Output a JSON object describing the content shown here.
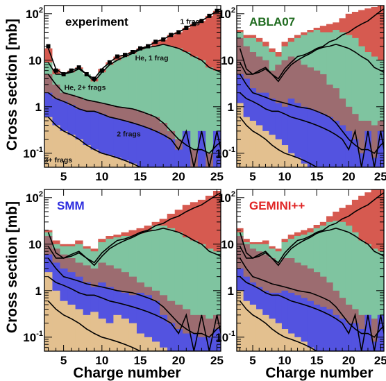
{
  "chart_data": {
    "type": "area",
    "stacked": true,
    "y_scale": "log",
    "shared_xlabel": "Charge number",
    "shared_ylabel": "Cross section [mb]",
    "xlim": [
      2.5,
      25.5
    ],
    "ylim": [
      0.05,
      150
    ],
    "x_ticks": [
      5,
      10,
      15,
      20,
      25
    ],
    "y_ticks": [
      {
        "value": 0.1,
        "base": "10",
        "exp": "-1"
      },
      {
        "value": 1,
        "base": "1",
        "exp": ""
      },
      {
        "value": 10,
        "base": "10",
        "exp": ""
      },
      {
        "value": 100,
        "base": "10",
        "exp": "2"
      }
    ],
    "colors": {
      "3+ frags": "#e3c08f",
      "2 frags": "#5353e0",
      "He, 2+ frags": "#9c6c70",
      "He, 1 frag": "#7fc4a0",
      "1 frag": "#d65a50"
    },
    "x": [
      3,
      4,
      5,
      6,
      7,
      8,
      9,
      10,
      11,
      12,
      13,
      14,
      15,
      16,
      17,
      18,
      19,
      20,
      21,
      22,
      23,
      24,
      25,
      26
    ],
    "experiment_totals": {
      "1 frag_top": [
        18,
        6.5,
        5,
        6,
        7,
        5,
        4,
        6.5,
        9,
        12,
        13,
        15,
        18,
        20,
        25,
        28,
        35,
        40,
        50,
        60,
        70,
        90,
        115,
        140
      ],
      "He1_top": [
        9,
        5,
        5,
        5.5,
        6.5,
        5,
        3.5,
        5.5,
        8,
        10,
        12,
        14,
        17,
        19,
        20,
        22,
        20,
        18,
        15,
        12,
        10,
        7,
        6,
        5
      ],
      "He2_top": [
        5,
        3,
        2,
        1.8,
        1.6,
        1.4,
        1.3,
        1.2,
        1.1,
        1.0,
        0.95,
        0.9,
        0.8,
        0.7,
        0.6,
        0.45,
        0.3,
        0.2,
        0.15,
        0.12,
        0.12,
        0.1,
        0.15,
        0.2
      ],
      "2frag_top": [
        2,
        1.5,
        1.3,
        1.1,
        0.9,
        0.8,
        0.8,
        0.7,
        0.6,
        0.55,
        0.5,
        0.45,
        0.4,
        0.35,
        0.3,
        0.25,
        0.2,
        0.12,
        0.3,
        0.05,
        0.3,
        0.05,
        0.3,
        0.05
      ],
      "3plus_top": [
        0.6,
        0.4,
        0.3,
        0.25,
        0.2,
        0.15,
        0.12,
        0.1,
        0.09,
        0.08,
        0.07,
        0.06,
        0.05,
        0.05,
        0.05,
        0.05,
        0.05,
        0.05,
        0.05,
        0.05,
        0.05,
        0.05,
        0.05,
        0.05
      ]
    },
    "panels": [
      {
        "title": "experiment",
        "title_color": "#000000",
        "region_labels": [
          {
            "text": "1 frag",
            "x": 21.5,
            "y": 60
          },
          {
            "text": "He, 1 frag",
            "x": 16.5,
            "y": 10
          },
          {
            "text": "He, 2+ frags",
            "x": 7.8,
            "y": 2.3
          },
          {
            "text": "2 frags",
            "x": 13.5,
            "y": 0.23
          },
          {
            "text": "3+ frags",
            "x": 4.3,
            "y": 0.064
          }
        ],
        "stack_tops": {
          "3plus": [
            0.6,
            0.4,
            0.3,
            0.25,
            0.2,
            0.15,
            0.12,
            0.1,
            0.09,
            0.08,
            0.07,
            0.06,
            0.05,
            0.05,
            0.05,
            0.05,
            0.05,
            0.05,
            0.05,
            0.05,
            0.05,
            0.05,
            0.05,
            0.05
          ],
          "2frag": [
            2,
            1.5,
            1.3,
            1.1,
            0.9,
            0.8,
            0.8,
            0.7,
            0.6,
            0.55,
            0.5,
            0.45,
            0.4,
            0.35,
            0.3,
            0.25,
            0.2,
            0.12,
            0.3,
            0.05,
            0.3,
            0.05,
            0.3,
            0.05
          ],
          "He2": [
            5,
            3,
            2,
            1.8,
            1.6,
            1.4,
            1.3,
            1.2,
            1.1,
            1.0,
            0.95,
            0.9,
            0.8,
            0.7,
            0.6,
            0.45,
            0.3,
            0.2,
            0.15,
            0.12,
            0.12,
            0.1,
            0.15,
            0.2
          ],
          "He1": [
            9,
            5,
            5,
            5.5,
            6.5,
            5,
            3.5,
            5.5,
            8,
            10,
            12,
            14,
            17,
            19,
            20,
            22,
            20,
            18,
            15,
            12,
            10,
            7,
            6,
            5
          ],
          "onefrag": [
            18,
            6.5,
            5,
            6,
            7,
            5,
            4,
            6.5,
            9,
            12,
            13,
            15,
            18,
            20,
            25,
            28,
            35,
            40,
            50,
            60,
            70,
            90,
            115,
            140
          ]
        },
        "markers": [
          20,
          6,
          5,
          6,
          7,
          5,
          4,
          6,
          9,
          12,
          13,
          15,
          18,
          20,
          25,
          28,
          35,
          40,
          50,
          60,
          70,
          90,
          115
        ]
      },
      {
        "title": "ABLA07",
        "title_color": "#1f6b1f",
        "region_labels": [],
        "stack_tops": {
          "3plus": [
            1.2,
            0.6,
            0.5,
            0.4,
            0.3,
            0.25,
            0.2,
            0.15,
            0.1,
            0.08,
            0.06,
            0.05,
            0.05,
            0.05,
            0.05,
            0.05,
            0.05,
            0.05,
            0.05,
            0.05,
            0.05,
            0.05,
            0.05,
            0.05
          ],
          "2frag": [
            5,
            4,
            2.5,
            2,
            2,
            1.5,
            1.2,
            1,
            1.5,
            1.2,
            1,
            0.9,
            0.8,
            0.7,
            0.6,
            0.5,
            0.4,
            0.3,
            0.2,
            0.1,
            0.3,
            0.08,
            0.3,
            0.1
          ],
          "He2": [
            30,
            20,
            15,
            12,
            10,
            6,
            8,
            10,
            12,
            10,
            8,
            7,
            6,
            5,
            3,
            2.5,
            1.5,
            1,
            0.7,
            0.5,
            0.5,
            0.4,
            0.5,
            0.5
          ],
          "He1": [
            40,
            30,
            30,
            25,
            20,
            15,
            12,
            20,
            25,
            30,
            35,
            40,
            45,
            40,
            40,
            45,
            40,
            35,
            30,
            20,
            15,
            12,
            10,
            8
          ],
          "onefrag": [
            45,
            35,
            35,
            30,
            25,
            18,
            15,
            25,
            30,
            35,
            40,
            45,
            50,
            55,
            60,
            65,
            80,
            100,
            110,
            120,
            130,
            140,
            150,
            150
          ]
        },
        "markers": []
      },
      {
        "title": "SMM",
        "title_color": "#2b2bde",
        "region_labels": [],
        "stack_tops": {
          "3plus": [
            2.5,
            1,
            0.6,
            0.5,
            0.4,
            0.3,
            0.35,
            0.25,
            0.2,
            0.3,
            0.25,
            0.2,
            0.12,
            0.1,
            0.08,
            0.06,
            0.05,
            0.05,
            0.05,
            0.05,
            0.05,
            0.05,
            0.05,
            0.05
          ],
          "2frag": [
            6,
            4,
            3,
            2.5,
            2,
            1.5,
            1.2,
            1.5,
            1.2,
            1.0,
            0.9,
            0.8,
            0.9,
            0.8,
            0.6,
            0.3,
            0.2,
            0.15,
            0.12,
            0.12,
            0.1,
            0.1,
            0.15,
            0.1
          ],
          "He2": [
            15,
            8,
            6,
            5,
            4,
            3.5,
            3,
            4,
            3.5,
            3,
            2.5,
            2,
            1.5,
            1.2,
            1,
            0.8,
            0.6,
            0.5,
            0.4,
            0.3,
            0.3,
            0.25,
            0.3,
            0.3
          ],
          "He1": [
            18,
            10,
            9,
            9,
            10,
            8,
            7,
            11,
            13,
            14,
            15,
            15,
            17,
            20,
            25,
            25,
            22,
            18,
            14,
            12,
            10,
            8,
            7,
            6
          ],
          "onefrag": [
            20,
            12,
            10,
            10,
            12,
            9,
            8,
            13,
            15,
            16,
            18,
            20,
            22,
            25,
            30,
            35,
            45,
            55,
            70,
            80,
            90,
            110,
            140,
            160
          ]
        },
        "markers": []
      },
      {
        "title": "GEMINI++",
        "title_color": "#e02525",
        "region_labels": [],
        "stack_tops": {
          "3plus": [
            1,
            0.6,
            0.5,
            0.4,
            0.3,
            0.25,
            0.2,
            0.15,
            0.12,
            0.1,
            0.08,
            0.06,
            0.05,
            0.05,
            0.05,
            0.05,
            0.05,
            0.05,
            0.05,
            0.05,
            0.05,
            0.05,
            0.05,
            0.05
          ],
          "2frag": [
            3,
            2,
            1.5,
            1.2,
            1,
            0.9,
            0.9,
            1.0,
            0.9,
            0.8,
            0.7,
            0.6,
            0.5,
            0.45,
            0.4,
            0.3,
            0.25,
            0.2,
            0.2,
            0.15,
            0.3,
            0.08,
            0.3,
            0.1
          ],
          "He2": [
            15,
            10,
            8,
            7,
            6,
            5,
            4,
            5,
            5,
            4,
            3.5,
            3,
            2.5,
            2,
            1.5,
            1,
            0.7,
            0.5,
            0.4,
            0.3,
            0.3,
            0.25,
            0.3,
            0.3
          ],
          "He1": [
            18,
            11,
            10,
            10,
            10,
            8,
            7,
            11,
            13,
            15,
            16,
            18,
            22,
            25,
            30,
            32,
            30,
            25,
            18,
            12,
            10,
            8,
            7,
            6
          ],
          "onefrag": [
            22,
            13,
            11,
            11,
            12,
            9,
            8,
            13,
            16,
            18,
            20,
            22,
            26,
            30,
            40,
            50,
            60,
            70,
            90,
            110,
            130,
            150,
            170,
            180
          ]
        },
        "markers": []
      }
    ]
  }
}
